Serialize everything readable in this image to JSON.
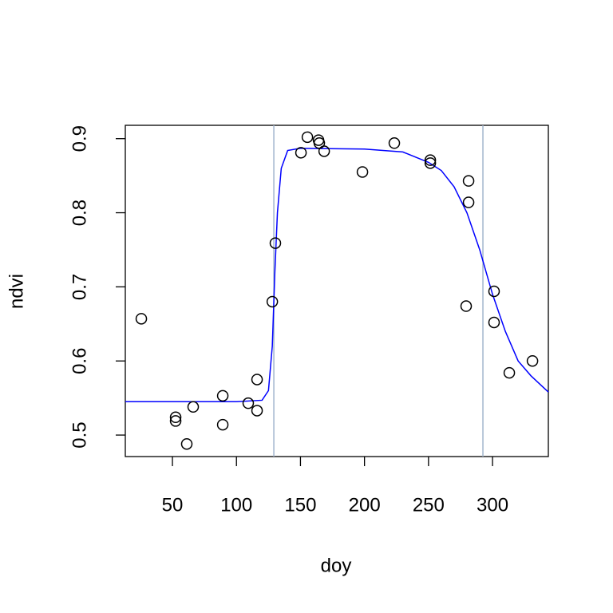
{
  "chart_data": {
    "type": "scatter",
    "xlabel": "doy",
    "ylabel": "ndvi",
    "xlim": [
      13.2,
      343.6
    ],
    "ylim": [
      0.471,
      0.918
    ],
    "xticks": [
      50,
      100,
      150,
      200,
      250,
      300
    ],
    "yticks": [
      0.5,
      0.6,
      0.7,
      0.8,
      0.9
    ],
    "grid": false,
    "points": {
      "color": "#000000",
      "x": [
        25.7,
        52.5,
        52.5,
        61.2,
        66.2,
        89.3,
        89.3,
        109.2,
        116.1,
        116.1,
        128,
        130.4,
        150.4,
        155.4,
        164.1,
        164.7,
        168.5,
        198.4,
        223.3,
        251.4,
        251.4,
        279.4,
        281.3,
        281.3,
        301.2,
        301.2,
        313.1,
        331.2
      ],
      "y": [
        0.657,
        0.524,
        0.519,
        0.488,
        0.538,
        0.553,
        0.514,
        0.543,
        0.575,
        0.533,
        0.68,
        0.759,
        0.881,
        0.902,
        0.898,
        0.894,
        0.883,
        0.855,
        0.894,
        0.871,
        0.867,
        0.674,
        0.843,
        0.814,
        0.694,
        0.652,
        0.584,
        0.6
      ]
    },
    "fit": {
      "color": "#0000ff",
      "x": [
        13.2,
        100,
        120,
        125,
        128,
        130,
        132,
        135,
        140,
        150,
        200,
        230,
        250,
        260,
        270,
        280,
        290,
        300,
        310,
        320,
        330,
        343.6
      ],
      "values": [
        0.545,
        0.545,
        0.547,
        0.56,
        0.62,
        0.72,
        0.8,
        0.86,
        0.884,
        0.887,
        0.886,
        0.882,
        0.868,
        0.857,
        0.835,
        0.8,
        0.75,
        0.69,
        0.64,
        0.6,
        0.58,
        0.558
      ]
    },
    "vlines": {
      "color": "#a2b5cd",
      "x": [
        129.2,
        292.5
      ]
    }
  }
}
